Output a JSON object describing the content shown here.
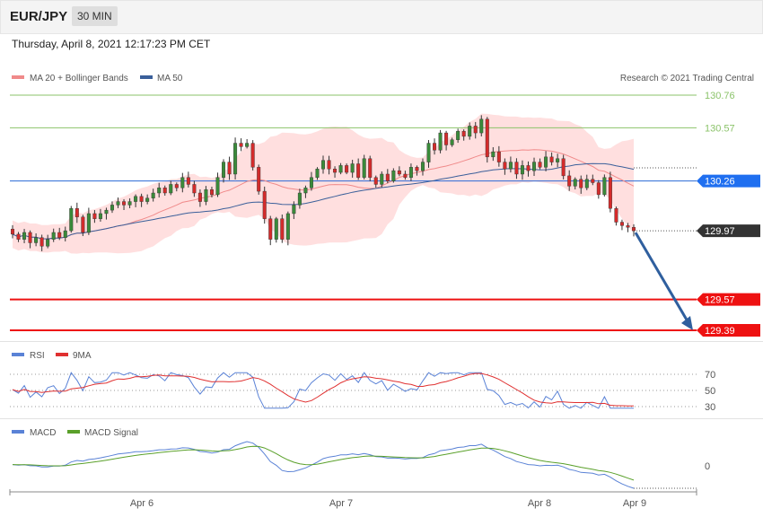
{
  "header": {
    "symbol": "EUR/JPY",
    "timeframe": "30 MIN",
    "datetime": "Thursday, April 8, 2021 12:17:23 PM CET"
  },
  "legend": {
    "ma20": "MA 20 + Bollinger Bands",
    "ma50": "MA 50",
    "rsi": "RSI",
    "rsi_ma": "9MA",
    "macd": "MACD",
    "macd_signal": "MACD Signal",
    "credit": "Research © 2021 Trading Central"
  },
  "colors": {
    "up": "#3a8a3a",
    "down": "#d42b2b",
    "band": "#ffd9d9",
    "ma20": "#f08a8a",
    "ma50": "#3a5f9a",
    "blue_line": "#2a6ad6",
    "resistance": "#8bc36a",
    "support": "#ee1111",
    "arrow": "#2f5f9e",
    "rsi": "#5a82d6",
    "rsi_ma": "#e03030",
    "macd": "#5a82d6",
    "macd_signal": "#5aa02a",
    "current": "#333333"
  },
  "chart_data": {
    "type": "candlestick",
    "x_ticks": [
      "Apr 6",
      "Apr 7",
      "Apr 8",
      "Apr 9"
    ],
    "ylim": [
      129.33,
      130.84
    ],
    "levels": [
      {
        "value": 130.76,
        "label": "130.76",
        "kind": "resistance"
      },
      {
        "value": 130.57,
        "label": "130.57",
        "kind": "resistance"
      },
      {
        "value": 130.26,
        "label": "130.26",
        "kind": "pivot"
      },
      {
        "value": 129.97,
        "label": "129.97",
        "kind": "current"
      },
      {
        "value": 129.57,
        "label": "129.57",
        "kind": "support"
      },
      {
        "value": 129.39,
        "label": "129.39",
        "kind": "support"
      }
    ],
    "arrow": {
      "from": 129.97,
      "to": 129.39
    },
    "rsi_ticks": [
      70,
      50,
      30
    ],
    "macd_ticks": [
      0
    ],
    "closes": [
      129.95,
      129.92,
      129.96,
      129.9,
      129.93,
      129.88,
      129.92,
      129.96,
      129.93,
      129.97,
      130.1,
      130.05,
      129.96,
      130.07,
      130.04,
      130.07,
      130.09,
      130.12,
      130.14,
      130.12,
      130.14,
      130.17,
      130.14,
      130.16,
      130.19,
      130.22,
      130.19,
      130.24,
      130.22,
      130.28,
      130.24,
      130.19,
      130.14,
      130.21,
      130.18,
      130.28,
      130.37,
      130.3,
      130.48,
      130.46,
      130.48,
      130.34,
      130.2,
      130.04,
      129.92,
      130.04,
      129.92,
      130.07,
      130.12,
      130.19,
      130.22,
      130.28,
      130.33,
      130.38,
      130.33,
      130.31,
      130.35,
      130.31,
      130.36,
      130.28,
      130.39,
      130.28,
      130.24,
      130.3,
      130.26,
      130.32,
      130.3,
      130.28,
      130.34,
      130.32,
      130.37,
      130.48,
      130.44,
      130.54,
      130.47,
      130.5,
      130.55,
      130.52,
      130.58,
      130.54,
      130.62,
      130.4,
      130.43,
      130.37,
      130.33,
      130.37,
      130.3,
      130.35,
      130.32,
      130.37,
      130.34,
      130.4,
      130.37,
      130.39,
      130.29,
      130.23,
      130.27,
      130.22,
      130.27,
      130.25,
      130.18,
      130.28,
      130.1,
      130.02,
      130.0,
      129.99,
      129.97
    ]
  }
}
